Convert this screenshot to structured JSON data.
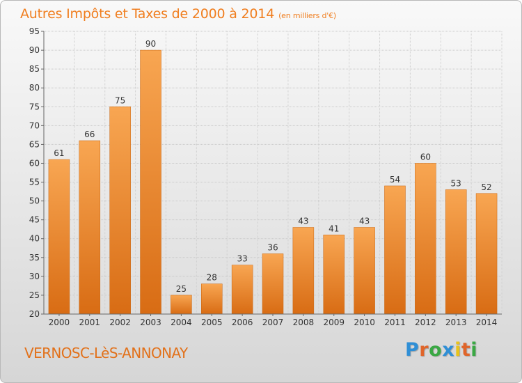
{
  "title": "Autres Impôts et Taxes de 2000 à 2014",
  "subtitle": "(en milliers d'€)",
  "town": "VERNOSC-LèS-ANNONAY",
  "logo": {
    "letters": [
      "P",
      "r",
      "o",
      "x",
      "i",
      "t",
      "i"
    ],
    "colors": [
      "#2f8fd6",
      "#e0652a",
      "#3aa844",
      "#2f8fd6",
      "#e8c31c",
      "#e0652a",
      "#3aa844"
    ]
  },
  "chart_data": {
    "type": "bar",
    "categories": [
      "2000",
      "2001",
      "2002",
      "2003",
      "2004",
      "2005",
      "2006",
      "2007",
      "2008",
      "2009",
      "2010",
      "2011",
      "2012",
      "2013",
      "2014"
    ],
    "values": [
      61,
      66,
      75,
      90,
      25,
      28,
      33,
      36,
      43,
      41,
      43,
      54,
      60,
      53,
      52
    ],
    "ylim": [
      20,
      95
    ],
    "yticks": [
      20,
      25,
      30,
      35,
      40,
      45,
      50,
      55,
      60,
      65,
      70,
      75,
      80,
      85,
      90,
      95
    ],
    "grid": true,
    "bar_color": "#f0892c"
  }
}
